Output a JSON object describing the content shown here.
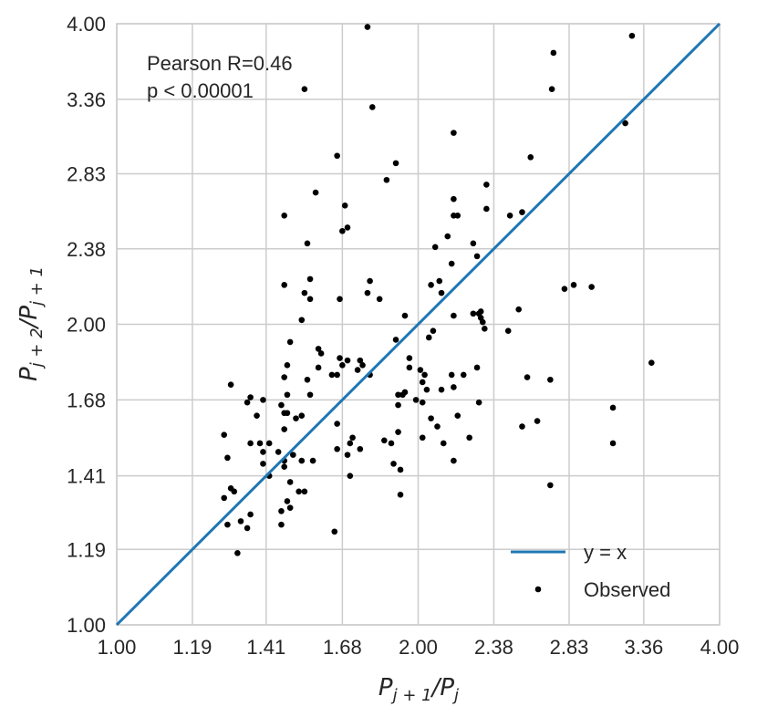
{
  "chart_data": {
    "type": "scatter",
    "x_scale": "log",
    "y_scale": "log",
    "xlim": [
      1.0,
      4.0
    ],
    "ylim": [
      1.0,
      4.0
    ],
    "grid": true,
    "xticks": [
      "1.00",
      "1.19",
      "1.41",
      "1.68",
      "2.00",
      "2.38",
      "2.83",
      "3.36",
      "4.00"
    ],
    "yticks": [
      "1.00",
      "1.19",
      "1.41",
      "1.68",
      "2.00",
      "2.38",
      "2.83",
      "3.36",
      "4.00"
    ],
    "xlabel": "P_{j+1}/P_j",
    "ylabel": "P_{j+2}/P_{j+1}",
    "annotation": [
      "Pearson R=0.46",
      "p < 0.00001"
    ],
    "legend_position": "bottom-right",
    "series": [
      {
        "name": "y = x",
        "kind": "line",
        "color": "#1f77b4",
        "points": [
          [
            1.0,
            1.0
          ],
          [
            4.0,
            4.0
          ]
        ]
      },
      {
        "name": "Observed",
        "kind": "scatter",
        "color": "#000000",
        "points": [
          [
            1.78,
            3.97
          ],
          [
            3.27,
            3.89
          ],
          [
            2.73,
            3.74
          ],
          [
            2.72,
            3.44
          ],
          [
            1.54,
            3.44
          ],
          [
            1.8,
            3.3
          ],
          [
            3.22,
            3.18
          ],
          [
            2.17,
            3.11
          ],
          [
            1.66,
            2.95
          ],
          [
            2.59,
            2.94
          ],
          [
            1.9,
            2.9
          ],
          [
            1.86,
            2.79
          ],
          [
            2.34,
            2.76
          ],
          [
            1.58,
            2.71
          ],
          [
            2.17,
            2.67
          ],
          [
            1.69,
            2.63
          ],
          [
            2.34,
            2.61
          ],
          [
            2.54,
            2.59
          ],
          [
            2.47,
            2.57
          ],
          [
            1.47,
            2.57
          ],
          [
            2.17,
            2.57
          ],
          [
            2.19,
            2.57
          ],
          [
            1.7,
            2.5
          ],
          [
            1.68,
            2.48
          ],
          [
            2.14,
            2.45
          ],
          [
            2.27,
            2.41
          ],
          [
            1.55,
            2.41
          ],
          [
            2.08,
            2.39
          ],
          [
            2.29,
            2.34
          ],
          [
            2.16,
            2.3
          ],
          [
            1.56,
            2.22
          ],
          [
            2.86,
            2.19
          ],
          [
            2.98,
            2.18
          ],
          [
            2.8,
            2.17
          ],
          [
            2.1,
            2.21
          ],
          [
            1.47,
            2.19
          ],
          [
            1.79,
            2.21
          ],
          [
            2.06,
            2.19
          ],
          [
            1.54,
            2.15
          ],
          [
            1.78,
            2.15
          ],
          [
            1.56,
            2.12
          ],
          [
            2.11,
            2.15
          ],
          [
            1.67,
            2.12
          ],
          [
            1.83,
            2.12
          ],
          [
            2.52,
            2.07
          ],
          [
            2.3,
            2.05
          ],
          [
            2.31,
            2.06
          ],
          [
            2.27,
            2.05
          ],
          [
            2.17,
            2.04
          ],
          [
            1.94,
            2.04
          ],
          [
            1.53,
            2.02
          ],
          [
            2.31,
            2.03
          ],
          [
            2.32,
            2.01
          ],
          [
            2.07,
            1.97
          ],
          [
            2.46,
            1.97
          ],
          [
            2.33,
            1.98
          ],
          [
            2.05,
            1.94
          ],
          [
            1.9,
            1.93
          ],
          [
            1.49,
            1.92
          ],
          [
            1.59,
            1.89
          ],
          [
            1.6,
            1.87
          ],
          [
            1.96,
            1.85
          ],
          [
            1.67,
            1.85
          ],
          [
            1.7,
            1.84
          ],
          [
            1.75,
            1.84
          ],
          [
            3.42,
            1.83
          ],
          [
            1.76,
            1.82
          ],
          [
            1.48,
            1.82
          ],
          [
            1.68,
            1.82
          ],
          [
            1.59,
            1.81
          ],
          [
            2.29,
            1.81
          ],
          [
            2.01,
            1.8
          ],
          [
            1.74,
            1.8
          ],
          [
            1.96,
            1.81
          ],
          [
            1.79,
            1.78
          ],
          [
            1.64,
            1.78
          ],
          [
            1.66,
            1.78
          ],
          [
            2.57,
            1.77
          ],
          [
            2.03,
            1.78
          ],
          [
            2.16,
            1.78
          ],
          [
            2.22,
            1.78
          ],
          [
            1.47,
            1.77
          ],
          [
            1.55,
            1.76
          ],
          [
            2.71,
            1.76
          ],
          [
            2.02,
            1.75
          ],
          [
            1.3,
            1.74
          ],
          [
            2.17,
            1.73
          ],
          [
            2.11,
            1.72
          ],
          [
            2.04,
            1.72
          ],
          [
            1.91,
            1.7
          ],
          [
            1.48,
            1.7
          ],
          [
            1.56,
            1.7
          ],
          [
            1.93,
            1.7
          ],
          [
            1.94,
            1.71
          ],
          [
            1.36,
            1.69
          ],
          [
            1.4,
            1.68
          ],
          [
            1.35,
            1.67
          ],
          [
            1.99,
            1.68
          ],
          [
            1.46,
            1.66
          ],
          [
            2.02,
            1.67
          ],
          [
            1.91,
            1.66
          ],
          [
            2.3,
            1.67
          ],
          [
            3.13,
            1.65
          ],
          [
            1.47,
            1.63
          ],
          [
            1.38,
            1.62
          ],
          [
            1.48,
            1.63
          ],
          [
            1.51,
            1.61
          ],
          [
            2.19,
            1.62
          ],
          [
            2.06,
            1.61
          ],
          [
            2.63,
            1.6
          ],
          [
            1.53,
            1.62
          ],
          [
            2.09,
            1.58
          ],
          [
            1.66,
            1.59
          ],
          [
            2.54,
            1.58
          ],
          [
            1.47,
            1.57
          ],
          [
            1.91,
            1.56
          ],
          [
            1.28,
            1.55
          ],
          [
            1.72,
            1.54
          ],
          [
            2.25,
            1.54
          ],
          [
            1.85,
            1.53
          ],
          [
            2.02,
            1.54
          ],
          [
            1.71,
            1.52
          ],
          [
            1.36,
            1.52
          ],
          [
            1.39,
            1.52
          ],
          [
            1.42,
            1.52
          ],
          [
            1.88,
            1.52
          ],
          [
            1.45,
            1.49
          ],
          [
            2.12,
            1.52
          ],
          [
            3.13,
            1.52
          ],
          [
            1.4,
            1.49
          ],
          [
            1.75,
            1.5
          ],
          [
            1.66,
            1.5
          ],
          [
            1.5,
            1.48
          ],
          [
            1.29,
            1.47
          ],
          [
            1.7,
            1.48
          ],
          [
            1.47,
            1.46
          ],
          [
            1.53,
            1.46
          ],
          [
            1.89,
            1.45
          ],
          [
            1.57,
            1.46
          ],
          [
            1.4,
            1.45
          ],
          [
            2.17,
            1.46
          ],
          [
            1.47,
            1.44
          ],
          [
            1.92,
            1.43
          ],
          [
            1.42,
            1.41
          ],
          [
            1.49,
            1.39
          ],
          [
            1.71,
            1.41
          ],
          [
            1.3,
            1.37
          ],
          [
            2.71,
            1.38
          ],
          [
            1.31,
            1.36
          ],
          [
            1.52,
            1.36
          ],
          [
            1.54,
            1.36
          ],
          [
            1.92,
            1.35
          ],
          [
            1.28,
            1.34
          ],
          [
            1.49,
            1.31
          ],
          [
            1.48,
            1.33
          ],
          [
            1.46,
            1.3
          ],
          [
            1.36,
            1.29
          ],
          [
            1.33,
            1.27
          ],
          [
            1.46,
            1.26
          ],
          [
            1.65,
            1.24
          ],
          [
            1.29,
            1.26
          ],
          [
            1.35,
            1.25
          ],
          [
            1.32,
            1.18
          ]
        ]
      }
    ]
  }
}
